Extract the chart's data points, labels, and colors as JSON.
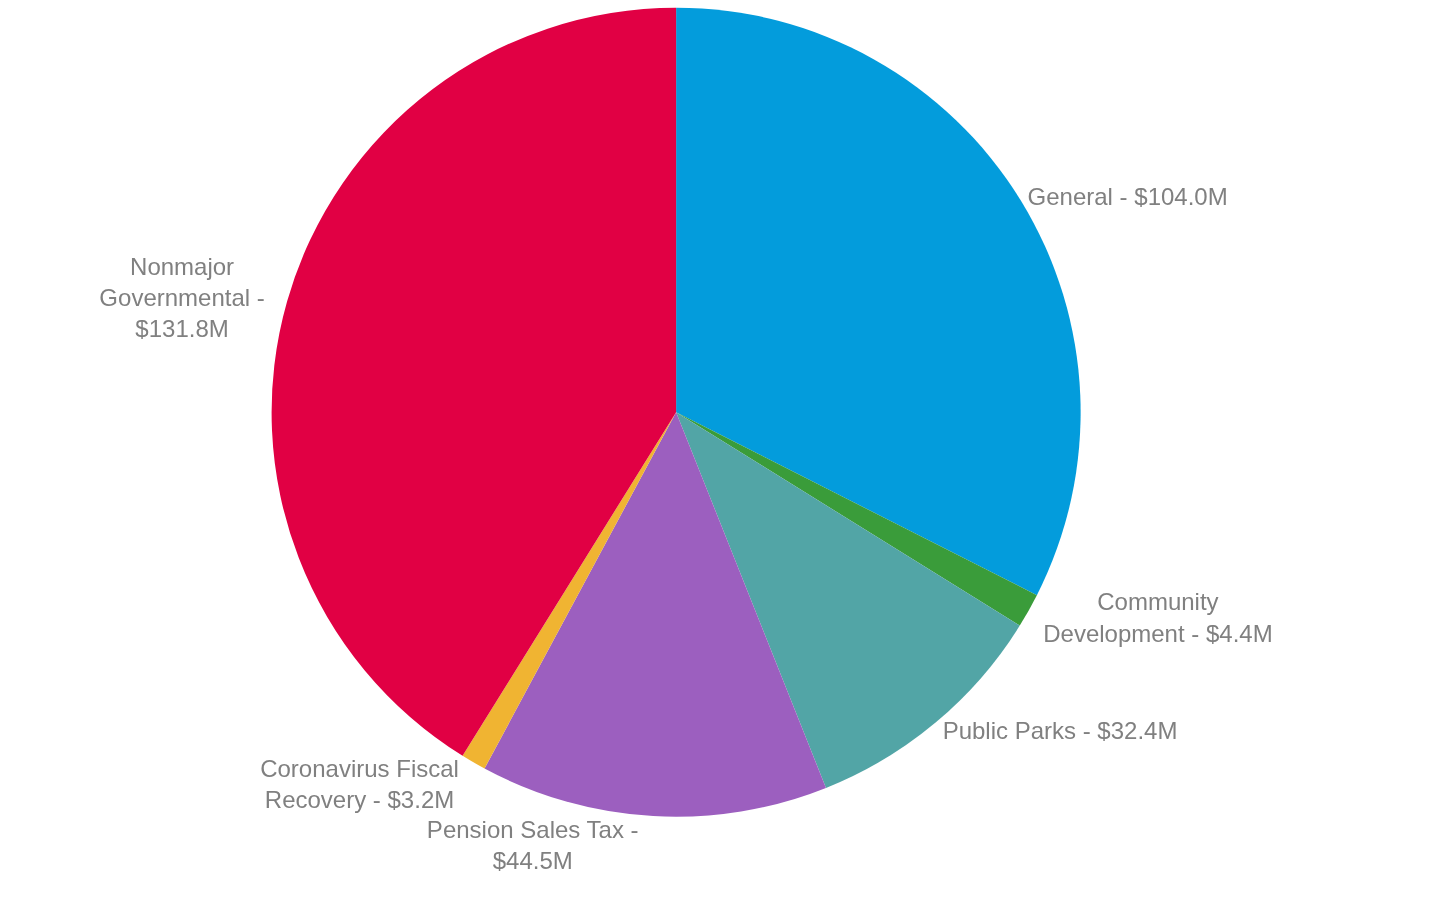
{
  "chart_data": {
    "type": "pie",
    "categories": [
      "General -",
      "Community Development -",
      "Public Parks -",
      "Pension Sales Tax -",
      "Coronavirus Fiscal Recovery -",
      "Nonmajor Governmental -"
    ],
    "values": [
      104.0,
      4.4,
      32.4,
      44.5,
      3.2,
      131.8
    ],
    "value_labels": [
      "$104.0M",
      "$4.4M",
      "$32.4M",
      "$44.5M",
      "$3.2M",
      "$131.8M"
    ],
    "colors": [
      "#039cdc",
      "#3a9c3a",
      "#52a5a6",
      "#9c5fbf",
      "#f0b432",
      "#e10044"
    ],
    "legend": false
  }
}
